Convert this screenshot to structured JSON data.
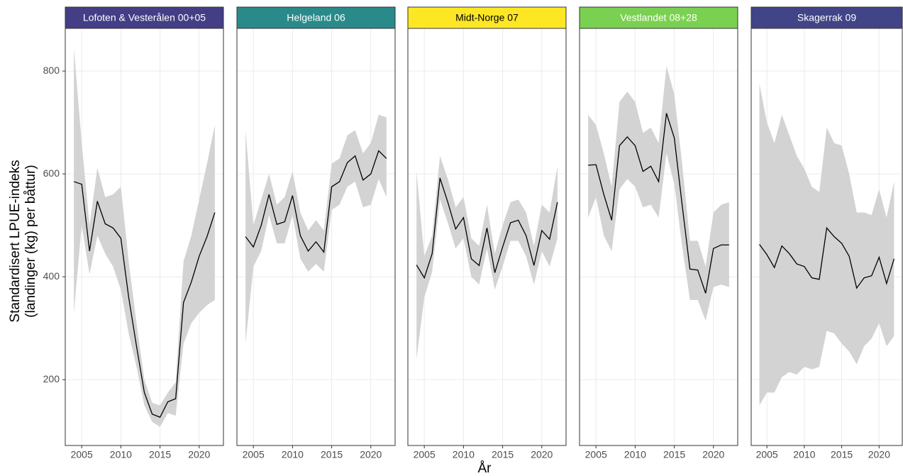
{
  "chart_data": [
    {
      "type": "line",
      "title": "Lofoten & Vesterålen 00+05",
      "strip_color": "#433e85",
      "strip_text_color": "#ffffff",
      "ylabel": [
        "Standardisert LPUE-indeks",
        "(landinger (kg) per båttur)"
      ],
      "x": [
        2004,
        2005,
        2006,
        2007,
        2008,
        2009,
        2010,
        2011,
        2012,
        2013,
        2014,
        2015,
        2016,
        2017,
        2018,
        2019,
        2020,
        2021,
        2022
      ],
      "xlim": [
        2002.9,
        2023.1
      ],
      "xticks": [
        2005,
        2010,
        2015,
        2020
      ],
      "ylim": [
        72,
        883
      ],
      "yticks": [
        200,
        400,
        600,
        800
      ],
      "grid": true,
      "series": [
        {
          "color": "#000000",
          "band_color": "#d3d3d3",
          "values": [
            585,
            580,
            450,
            547,
            503,
            495,
            475,
            360,
            265,
            175,
            133,
            127,
            157,
            163,
            350,
            390,
            440,
            478,
            525
          ],
          "lower": [
            330,
            500,
            405,
            480,
            445,
            420,
            375,
            290,
            225,
            150,
            118,
            108,
            135,
            130,
            270,
            310,
            330,
            345,
            355
          ],
          "upper": [
            845,
            660,
            500,
            612,
            555,
            560,
            575,
            430,
            310,
            200,
            155,
            150,
            175,
            195,
            430,
            480,
            550,
            620,
            695
          ]
        }
      ]
    },
    {
      "type": "line",
      "title": "Helgeland 06",
      "strip_color": "#2a8a8a",
      "strip_text_color": "#ffffff",
      "x": [
        2004,
        2005,
        2006,
        2007,
        2008,
        2009,
        2010,
        2011,
        2012,
        2013,
        2014,
        2015,
        2016,
        2017,
        2018,
        2019,
        2020,
        2021,
        2022
      ],
      "xlim": [
        2002.9,
        2023.1
      ],
      "xticks": [
        2005,
        2010,
        2015,
        2020
      ],
      "ylim": [
        72,
        883
      ],
      "yticks": [
        200,
        400,
        600,
        800
      ],
      "grid": true,
      "series": [
        {
          "color": "#000000",
          "band_color": "#d3d3d3",
          "values": [
            478,
            458,
            500,
            560,
            502,
            507,
            558,
            480,
            450,
            468,
            448,
            575,
            585,
            622,
            635,
            588,
            600,
            645,
            630
          ],
          "lower": [
            270,
            420,
            450,
            520,
            465,
            465,
            520,
            435,
            410,
            425,
            410,
            530,
            540,
            575,
            585,
            535,
            540,
            590,
            555
          ],
          "upper": [
            685,
            500,
            550,
            600,
            540,
            555,
            605,
            525,
            490,
            510,
            490,
            620,
            630,
            675,
            685,
            640,
            660,
            715,
            710
          ]
        }
      ]
    },
    {
      "type": "line",
      "title": "Midt-Norge 07",
      "strip_color": "#fde725",
      "strip_text_color": "#000000",
      "xlabel": "År",
      "x": [
        2004,
        2005,
        2006,
        2007,
        2008,
        2009,
        2010,
        2011,
        2012,
        2013,
        2014,
        2015,
        2016,
        2017,
        2018,
        2019,
        2020,
        2021,
        2022
      ],
      "xlim": [
        2002.9,
        2023.1
      ],
      "xticks": [
        2005,
        2010,
        2015,
        2020
      ],
      "ylim": [
        72,
        883
      ],
      "yticks": [
        200,
        400,
        600,
        800
      ],
      "grid": true,
      "series": [
        {
          "color": "#000000",
          "band_color": "#d3d3d3",
          "values": [
            423,
            398,
            445,
            592,
            545,
            493,
            515,
            435,
            422,
            495,
            408,
            458,
            505,
            510,
            480,
            422,
            490,
            473,
            545
          ],
          "lower": [
            240,
            360,
            410,
            550,
            505,
            455,
            475,
            400,
            385,
            455,
            375,
            420,
            470,
            470,
            440,
            385,
            450,
            420,
            475
          ],
          "upper": [
            605,
            440,
            480,
            635,
            590,
            535,
            555,
            475,
            460,
            540,
            445,
            500,
            545,
            550,
            525,
            460,
            540,
            525,
            615
          ]
        }
      ]
    },
    {
      "type": "line",
      "title": "Vestlandet 08+28",
      "strip_color": "#7ad151",
      "strip_text_color": "#ffffff",
      "x": [
        2004,
        2005,
        2006,
        2007,
        2008,
        2009,
        2010,
        2011,
        2012,
        2013,
        2014,
        2015,
        2016,
        2017,
        2018,
        2019,
        2020,
        2021,
        2022
      ],
      "xlim": [
        2002.9,
        2023.1
      ],
      "xticks": [
        2005,
        2010,
        2015,
        2020
      ],
      "ylim": [
        72,
        883
      ],
      "yticks": [
        200,
        400,
        600,
        800
      ],
      "grid": true,
      "series": [
        {
          "color": "#000000",
          "band_color": "#d3d3d3",
          "values": [
            617,
            618,
            560,
            510,
            655,
            672,
            655,
            605,
            615,
            585,
            718,
            670,
            540,
            415,
            413,
            368,
            455,
            462,
            462
          ],
          "lower": [
            515,
            555,
            480,
            450,
            570,
            590,
            575,
            535,
            540,
            515,
            640,
            580,
            460,
            355,
            355,
            315,
            380,
            385,
            380
          ],
          "upper": [
            715,
            695,
            640,
            575,
            740,
            760,
            740,
            680,
            690,
            660,
            810,
            755,
            620,
            470,
            470,
            420,
            525,
            540,
            545
          ]
        }
      ]
    },
    {
      "type": "line",
      "title": "Skagerrak 09",
      "strip_color": "#414487",
      "strip_text_color": "#ffffff",
      "x": [
        2004,
        2005,
        2006,
        2007,
        2008,
        2009,
        2010,
        2011,
        2012,
        2013,
        2014,
        2015,
        2016,
        2017,
        2018,
        2019,
        2020,
        2021,
        2022
      ],
      "xlim": [
        2002.9,
        2023.1
      ],
      "xticks": [
        2005,
        2010,
        2015,
        2020
      ],
      "ylim": [
        72,
        883
      ],
      "yticks": [
        200,
        400,
        600,
        800
      ],
      "grid": true,
      "series": [
        {
          "color": "#000000",
          "band_color": "#d3d3d3",
          "values": [
            463,
            443,
            418,
            460,
            445,
            425,
            420,
            398,
            395,
            495,
            478,
            465,
            440,
            378,
            398,
            402,
            438,
            387,
            435
          ],
          "lower": [
            150,
            175,
            175,
            205,
            215,
            210,
            225,
            220,
            225,
            295,
            290,
            270,
            255,
            230,
            265,
            280,
            310,
            265,
            285
          ],
          "upper": [
            775,
            700,
            660,
            715,
            675,
            635,
            610,
            575,
            565,
            690,
            660,
            655,
            600,
            525,
            525,
            520,
            570,
            515,
            585
          ]
        }
      ]
    }
  ]
}
